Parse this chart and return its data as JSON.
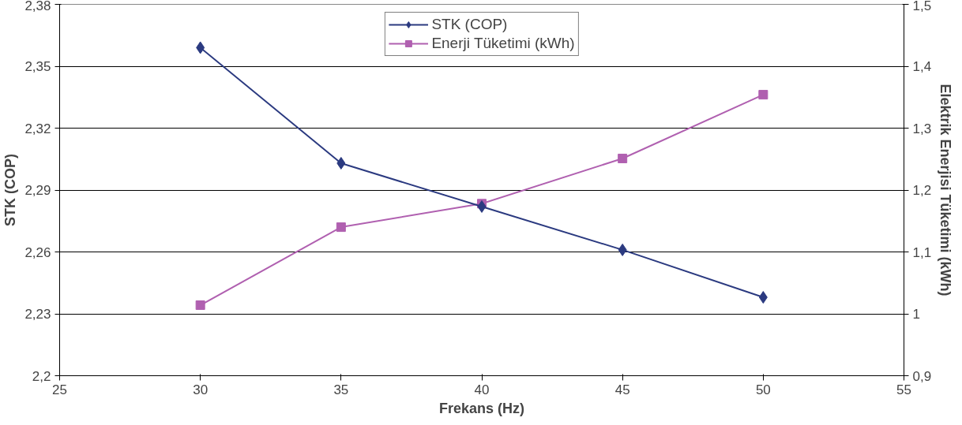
{
  "chart_data": {
    "type": "line",
    "xlabel": "Frekans (Hz)",
    "ylabel": "STK (COP)",
    "y2label": "Elektrik Enerjisi Tüketimi (kWh)",
    "x": [
      30,
      35,
      40,
      45,
      50
    ],
    "series": [
      {
        "name": "STK (COP)",
        "color": "#2b3a80",
        "values": [
          2.359,
          2.303,
          2.282,
          2.261,
          2.238
        ],
        "marker": "diamond"
      },
      {
        "name": "Enerji Tüketimi (kWh)",
        "color": "#b060b0",
        "values": [
          1.014,
          1.14,
          1.178,
          1.251,
          1.354
        ],
        "marker": "square",
        "axis": "y2"
      }
    ],
    "xlim": [
      25,
      55
    ],
    "xticks": [
      25,
      30,
      35,
      40,
      45,
      50,
      55
    ],
    "ylim": [
      2.2,
      2.38
    ],
    "yticks": [
      {
        "value": 2.2,
        "label": "2,2"
      },
      {
        "value": 2.23,
        "label": "2,23"
      },
      {
        "value": 2.26,
        "label": "2,26"
      },
      {
        "value": 2.29,
        "label": "2,29"
      },
      {
        "value": 2.32,
        "label": "2,32"
      },
      {
        "value": 2.35,
        "label": "2,35"
      },
      {
        "value": 2.38,
        "label": "2,38"
      }
    ],
    "y2lim": [
      0.9,
      1.5
    ],
    "y2ticks": [
      {
        "value": 0.9,
        "label": "0,9"
      },
      1,
      {
        "value": 1.1,
        "label": "1,1"
      },
      {
        "value": 1.2,
        "label": "1,2"
      },
      {
        "value": 1.3,
        "label": "1,3"
      },
      {
        "value": 1.4,
        "label": "1,4"
      },
      {
        "value": 1.5,
        "label": "1,5"
      }
    ],
    "grid": "y",
    "legend": "top",
    "line_style": "solid"
  }
}
